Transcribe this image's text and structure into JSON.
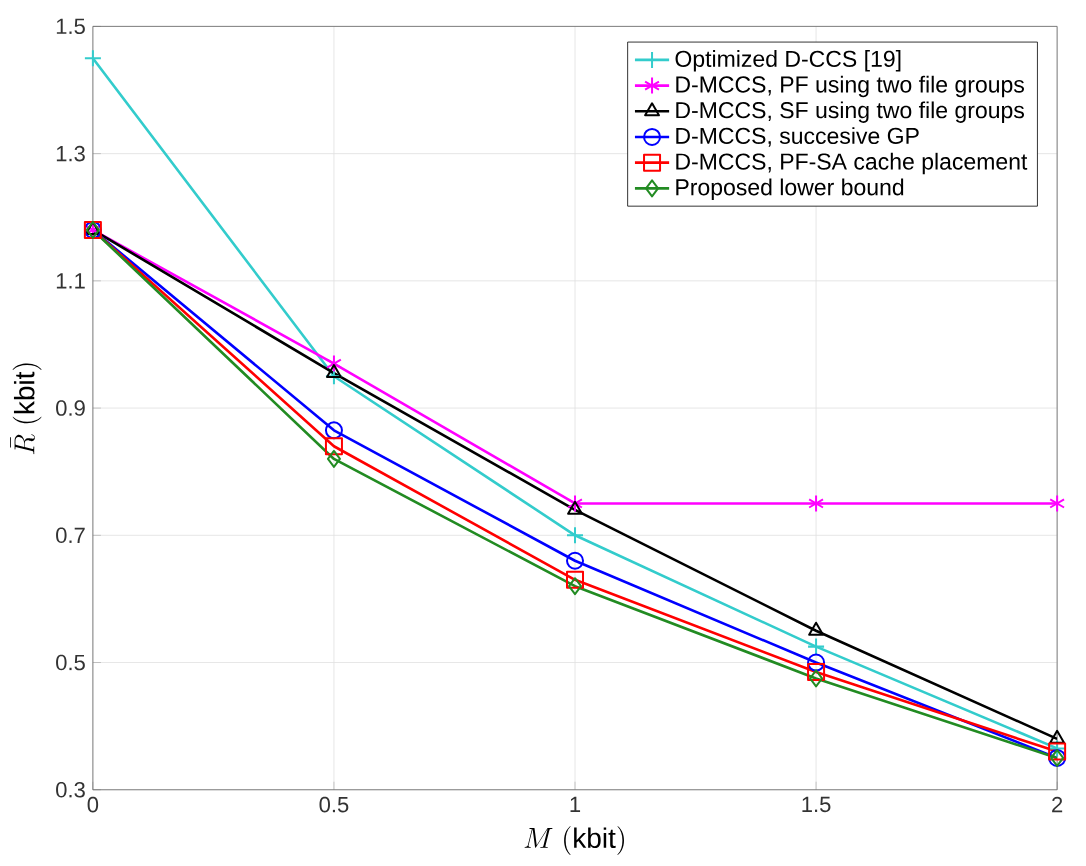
{
  "chart_data": {
    "type": "line",
    "xlabel": "M\\ (\\mathrm{kbit})",
    "ylabel": "\\bar{R}\\ (\\mathrm{kbit})",
    "x": [
      0,
      0.5,
      1,
      1.5,
      2
    ],
    "series": [
      {
        "name": "Optimized D-CCS [19]",
        "color": "#33cccc",
        "marker": "cross",
        "values": [
          1.45,
          0.95,
          0.7,
          0.525,
          0.365
        ]
      },
      {
        "name": "D-MCCS, PF using two file groups",
        "color": "#ff00ff",
        "marker": "cross",
        "values": [
          1.18,
          0.97,
          0.75,
          0.75,
          0.75
        ]
      },
      {
        "name": "D-MCCS, SF using two file groups",
        "color": "#000000",
        "marker": "triangle",
        "values": [
          1.18,
          0.955,
          0.74,
          0.55,
          0.38
        ]
      },
      {
        "name": "D-MCCS, succesive GP",
        "color": "#0000ff",
        "marker": "circle",
        "values": [
          1.18,
          0.865,
          0.66,
          0.5,
          0.35
        ]
      },
      {
        "name": "D-MCCS, PF-SA cache placement",
        "color": "#ff0000",
        "marker": "square",
        "values": [
          1.18,
          0.84,
          0.63,
          0.485,
          0.36
        ]
      },
      {
        "name": "Proposed lower bound",
        "color": "#228b22",
        "marker": "diamond",
        "values": [
          1.18,
          0.82,
          0.62,
          0.475,
          0.35
        ]
      }
    ],
    "xlim": [
      0,
      2
    ],
    "ylim": [
      0.3,
      1.5
    ],
    "xticks": [
      0,
      0.5,
      1,
      1.5,
      2
    ],
    "yticks": [
      0.3,
      0.5,
      0.7,
      0.9,
      1.1,
      1.3,
      1.5
    ],
    "grid": true,
    "legend": "top right",
    "line_style": "solid"
  }
}
